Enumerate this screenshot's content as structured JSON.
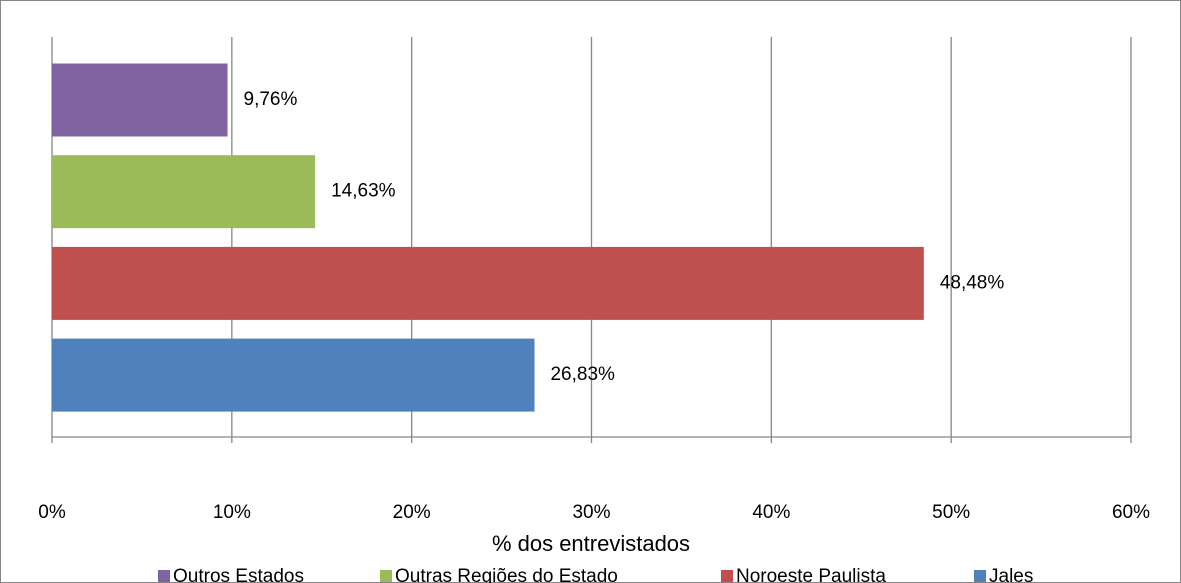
{
  "chart_data": {
    "type": "bar",
    "orientation": "horizontal",
    "x_label": "% dos entrevistados",
    "categories": [
      null
    ],
    "series": [
      {
        "name": "Outros Estados",
        "color": "#8064a2",
        "values": [
          9.76
        ],
        "value_labels": [
          "9,76%"
        ]
      },
      {
        "name": "Outras Regiões do Estado",
        "color": "#9bbb59",
        "values": [
          14.63
        ],
        "value_labels": [
          "14,63%"
        ]
      },
      {
        "name": "Noroeste Paulista",
        "color": "#c0504d",
        "values": [
          48.48
        ],
        "value_labels": [
          "48,48%"
        ]
      },
      {
        "name": "Jales",
        "color": "#4f81bd",
        "values": [
          26.83
        ],
        "value_labels": [
          "26,83%"
        ]
      }
    ],
    "xlim": [
      0,
      60
    ],
    "xticks": [
      {
        "value": 0,
        "label": "0%"
      },
      {
        "value": 10,
        "label": "10%"
      },
      {
        "value": 20,
        "label": "20%"
      },
      {
        "value": 30,
        "label": "30%"
      },
      {
        "value": 40,
        "label": "40%"
      },
      {
        "value": 50,
        "label": "50%"
      },
      {
        "value": 60,
        "label": "60%"
      }
    ],
    "grid": true,
    "legend": "bottom"
  }
}
